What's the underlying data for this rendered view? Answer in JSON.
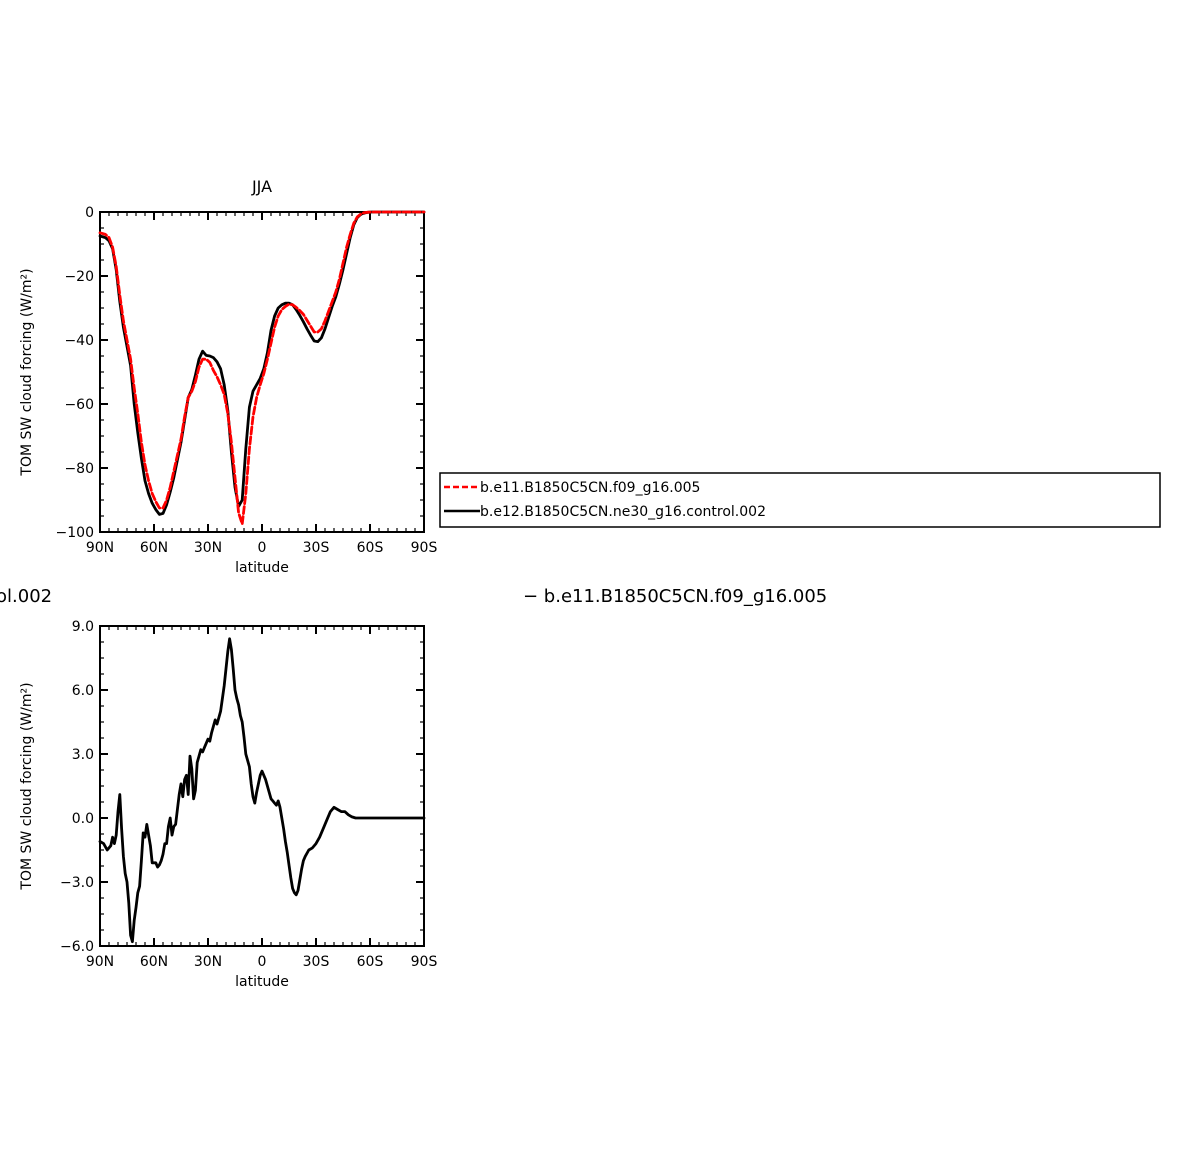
{
  "page": {
    "diff_header_left": "ol.002",
    "diff_header_right": "− b.e11.B1850C5CN.f09_g16.005"
  },
  "legend": {
    "items": [
      {
        "label": "b.e11.B1850C5CN.f09_g16.005",
        "color": "#ff0000",
        "dash": true
      },
      {
        "label": "b.e12.B1850C5CN.ne30_g16.control.002",
        "color": "#000000",
        "dash": false
      }
    ]
  },
  "chart_data": [
    {
      "type": "line",
      "title": "JJA",
      "xlabel": "latitude",
      "ylabel": "TOM SW cloud forcing (W/m²)",
      "xlim": [
        90,
        -90
      ],
      "ylim": [
        -100,
        0
      ],
      "xticks": [
        90,
        60,
        30,
        0,
        -30,
        -60,
        -90
      ],
      "xtick_labels": [
        "90N",
        "60N",
        "30N",
        "0",
        "30S",
        "60S",
        "90S"
      ],
      "yticks": [
        0,
        -20,
        -40,
        -60,
        -80,
        -100
      ],
      "ytick_labels": [
        "0",
        "−20",
        "−40",
        "−60",
        "−80",
        "−100"
      ],
      "series": [
        {
          "name": "b.e11.B1850C5CN.f09_g16.005",
          "color": "#ff0000",
          "dash": true,
          "x": [
            90,
            87,
            85,
            83,
            81,
            79,
            77,
            75,
            73,
            71,
            69,
            67,
            65,
            63,
            61,
            59,
            57,
            55,
            53,
            51,
            49,
            47,
            45,
            43,
            41,
            39,
            37,
            35,
            33,
            31,
            29,
            27,
            25,
            23,
            21,
            19,
            17,
            15,
            13,
            11,
            9,
            7,
            5,
            3,
            1,
            -1,
            -3,
            -5,
            -7,
            -9,
            -11,
            -13,
            -15,
            -17,
            -19,
            -21,
            -23,
            -25,
            -27,
            -29,
            -31,
            -33,
            -35,
            -37,
            -39,
            -41,
            -43,
            -45,
            -47,
            -49,
            -51,
            -53,
            -55,
            -57,
            -59,
            -61,
            -63,
            -65,
            -67,
            -69,
            -71,
            -73,
            -75,
            -77,
            -79,
            -81,
            -83,
            -85,
            -87,
            -90
          ],
          "y": [
            -6.5,
            -7,
            -8,
            -11,
            -17,
            -26,
            -34,
            -40,
            -46,
            -55,
            -63,
            -72,
            -79,
            -84,
            -88,
            -90.5,
            -92.5,
            -92.5,
            -90,
            -86,
            -81,
            -76,
            -71,
            -64,
            -58,
            -56,
            -53,
            -48.5,
            -46,
            -46,
            -47,
            -49.5,
            -51.5,
            -54,
            -57,
            -63,
            -72,
            -83,
            -94,
            -97.5,
            -88,
            -74,
            -64,
            -58,
            -54,
            -50.5,
            -46,
            -41,
            -36,
            -32.5,
            -30.5,
            -29.5,
            -28.8,
            -29,
            -29.8,
            -30.8,
            -32,
            -33.8,
            -35.7,
            -37.5,
            -37.5,
            -36.5,
            -34,
            -31,
            -28,
            -25,
            -21,
            -16,
            -11,
            -7,
            -3.5,
            -1.5,
            -0.6,
            -0.2,
            -0.05,
            0,
            0,
            0,
            0,
            0,
            0,
            0,
            0,
            0,
            0,
            0,
            0,
            0,
            0,
            0
          ]
        },
        {
          "name": "b.e12.B1850C5CN.ne30_g16.control.002",
          "color": "#000000",
          "dash": false,
          "x": [
            90,
            87,
            85,
            83,
            81,
            79,
            77,
            75,
            73,
            71,
            69,
            67,
            65,
            63,
            61,
            59,
            57,
            55,
            53,
            51,
            49,
            47,
            45,
            43,
            41,
            39,
            37,
            35,
            33,
            31,
            29,
            27,
            25,
            23,
            21,
            19,
            17,
            15,
            13,
            11,
            9,
            7,
            5,
            3,
            1,
            -1,
            -3,
            -5,
            -7,
            -9,
            -11,
            -13,
            -15,
            -17,
            -19,
            -21,
            -23,
            -25,
            -27,
            -29,
            -31,
            -33,
            -35,
            -37,
            -39,
            -41,
            -43,
            -45,
            -47,
            -49,
            -51,
            -53,
            -55,
            -57,
            -59,
            -61,
            -63,
            -65,
            -67,
            -69,
            -71,
            -73,
            -75,
            -77,
            -79,
            -81,
            -83,
            -85,
            -87,
            -90
          ],
          "y": [
            -7.5,
            -8,
            -9,
            -11.5,
            -18,
            -28,
            -36,
            -42,
            -48,
            -60,
            -69,
            -77,
            -84,
            -88,
            -91,
            -93,
            -94.5,
            -94.2,
            -91.5,
            -87.5,
            -83,
            -77.5,
            -72,
            -65,
            -58,
            -55.5,
            -51,
            -46,
            -43.5,
            -44.8,
            -45,
            -45.5,
            -46.8,
            -49,
            -54,
            -62,
            -75,
            -86,
            -92,
            -90,
            -74,
            -61,
            -56,
            -54,
            -52,
            -49,
            -44,
            -37,
            -32.5,
            -30,
            -29,
            -28.5,
            -28.5,
            -29,
            -30.5,
            -32.3,
            -34.3,
            -36.5,
            -38.5,
            -40.3,
            -40.5,
            -39.3,
            -36.5,
            -33,
            -29.5,
            -26.5,
            -22.5,
            -18,
            -13,
            -8,
            -4,
            -1.7,
            -0.7,
            -0.3,
            -0.1,
            0,
            0,
            0,
            0,
            0,
            0,
            0,
            0,
            0,
            0,
            0,
            0,
            0,
            0,
            0
          ]
        }
      ]
    },
    {
      "type": "line",
      "title": "",
      "xlabel": "latitude",
      "ylabel": "TOM SW cloud forcing (W/m²)",
      "xlim": [
        90,
        -90
      ],
      "ylim": [
        -6,
        9
      ],
      "xticks": [
        90,
        60,
        30,
        0,
        -30,
        -60,
        -90
      ],
      "xtick_labels": [
        "90N",
        "60N",
        "30N",
        "0",
        "30S",
        "60S",
        "90S"
      ],
      "yticks": [
        9,
        6,
        3,
        0,
        -3,
        -6
      ],
      "ytick_labels": [
        "9.0",
        "6.0",
        "3.0",
        "0.0",
        "−3.0",
        "−6.0"
      ],
      "series": [
        {
          "color": "#000000",
          "dash": false,
          "x": [
            90,
            88,
            86,
            84,
            83,
            82,
            81,
            80,
            79,
            78,
            77,
            76,
            75,
            74,
            73,
            72,
            71,
            70,
            69,
            68,
            67,
            66,
            65,
            64,
            63,
            62,
            61,
            60,
            59,
            58,
            57,
            56,
            55,
            54,
            53,
            52,
            51,
            50,
            49,
            48,
            47,
            46,
            45,
            44,
            43,
            42,
            41,
            40,
            39,
            38,
            37,
            36,
            35,
            34,
            33,
            32,
            31,
            30,
            29,
            28,
            27,
            26,
            25,
            24,
            23,
            22,
            21,
            20,
            19,
            18,
            17,
            16,
            15,
            14,
            13,
            12,
            11,
            10,
            9,
            8,
            7,
            6,
            5,
            4,
            3,
            2,
            1,
            0,
            -1,
            -2,
            -3,
            -4,
            -5,
            -6,
            -7,
            -8,
            -9,
            -10,
            -11,
            -12,
            -13,
            -14,
            -15,
            -16,
            -17,
            -18,
            -19,
            -20,
            -21,
            -22,
            -23,
            -24,
            -26,
            -28,
            -30,
            -32,
            -34,
            -36,
            -38,
            -40,
            -42,
            -44,
            -46,
            -48,
            -50,
            -52,
            -54,
            -56,
            -57,
            -58,
            -60,
            -62,
            -64,
            -66,
            -68,
            -70,
            -75,
            -80,
            -85,
            -90
          ],
          "y": [
            -1.1,
            -1.2,
            -1.5,
            -1.3,
            -0.9,
            -1.2,
            -0.8,
            0.3,
            1.1,
            -0.5,
            -1.8,
            -2.6,
            -3.0,
            -4.0,
            -5.5,
            -5.8,
            -4.8,
            -4.2,
            -3.5,
            -3.2,
            -2.0,
            -0.7,
            -0.9,
            -0.3,
            -0.8,
            -1.3,
            -2.1,
            -2.1,
            -2.1,
            -2.3,
            -2.2,
            -2.0,
            -1.7,
            -1.2,
            -1.2,
            -0.4,
            0.0,
            -0.8,
            -0.4,
            -0.3,
            0.4,
            1.1,
            1.6,
            1.0,
            1.8,
            2.0,
            1.1,
            2.9,
            2.3,
            0.9,
            1.3,
            2.6,
            2.9,
            3.2,
            3.1,
            3.3,
            3.5,
            3.7,
            3.6,
            4.0,
            4.3,
            4.6,
            4.4,
            4.7,
            5.0,
            5.6,
            6.2,
            7.0,
            7.8,
            8.4,
            7.9,
            7.0,
            6.0,
            5.6,
            5.3,
            4.8,
            4.5,
            3.8,
            3.0,
            2.7,
            2.4,
            1.6,
            1.0,
            0.7,
            1.2,
            1.6,
            2.0,
            2.2,
            2.0,
            1.8,
            1.5,
            1.2,
            0.9,
            0.8,
            0.7,
            0.6,
            0.8,
            0.5,
            0.0,
            -0.5,
            -1.1,
            -1.6,
            -2.2,
            -2.8,
            -3.3,
            -3.5,
            -3.6,
            -3.4,
            -2.9,
            -2.4,
            -2.0,
            -1.8,
            -1.5,
            -1.4,
            -1.2,
            -0.9,
            -0.5,
            -0.1,
            0.3,
            0.5,
            0.4,
            0.3,
            0.3,
            0.15,
            0.05,
            0.0,
            0.0,
            0.0,
            0.0,
            0.0,
            0.0,
            0.0,
            0.0,
            0.0,
            0.0,
            0.0,
            0.0,
            0.0,
            0.0,
            0.0
          ]
        }
      ]
    }
  ]
}
